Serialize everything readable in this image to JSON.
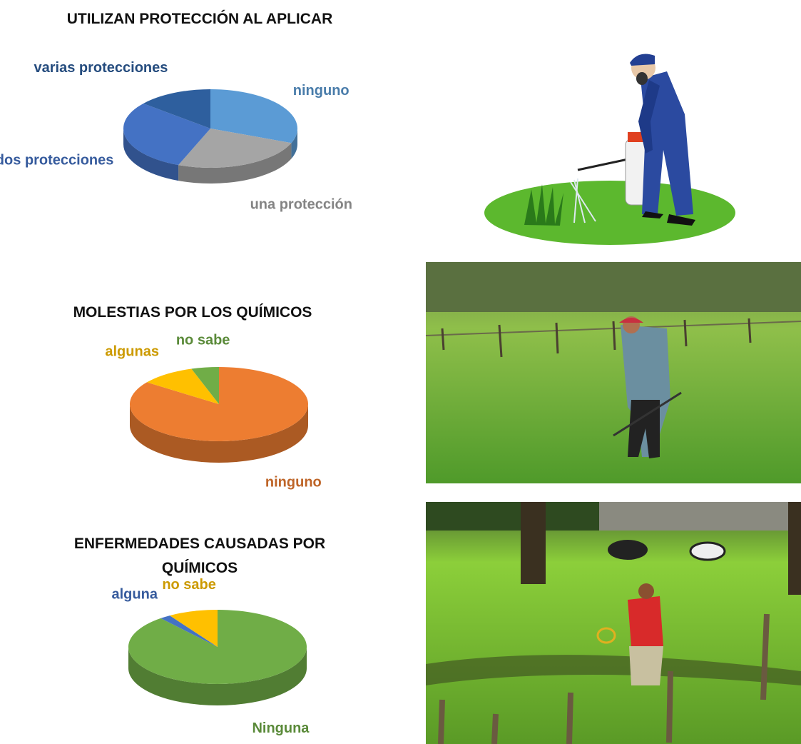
{
  "chart_data": [
    {
      "type": "pie",
      "title": "UTILIZAN PROTECCIÓN AL APLICAR",
      "categories": [
        "ninguno",
        "una protección",
        "dos protecciones",
        "varias protecciones"
      ],
      "values": [
        31,
        25,
        30,
        14
      ],
      "colors": [
        "#5b9bd5",
        "#a5a5a5",
        "#4472c4",
        "#2e5f9e"
      ]
    },
    {
      "type": "pie",
      "title": "MOLESTIAS POR LOS QUÍMICOS",
      "categories": [
        "ninguno",
        "algunas",
        "no sabe"
      ],
      "values": [
        85,
        10,
        5
      ],
      "colors": [
        "#ed7d31",
        "#ffc000",
        "#70ad47"
      ]
    },
    {
      "type": "pie",
      "title": "ENFERMEDADES CAUSADAS POR QUÍMICOS",
      "categories": [
        "Ninguna",
        "alguna",
        "no sabe"
      ],
      "values": [
        89,
        2,
        9
      ],
      "colors": [
        "#70ad47",
        "#4472c4",
        "#ffc000"
      ]
    }
  ]
}
